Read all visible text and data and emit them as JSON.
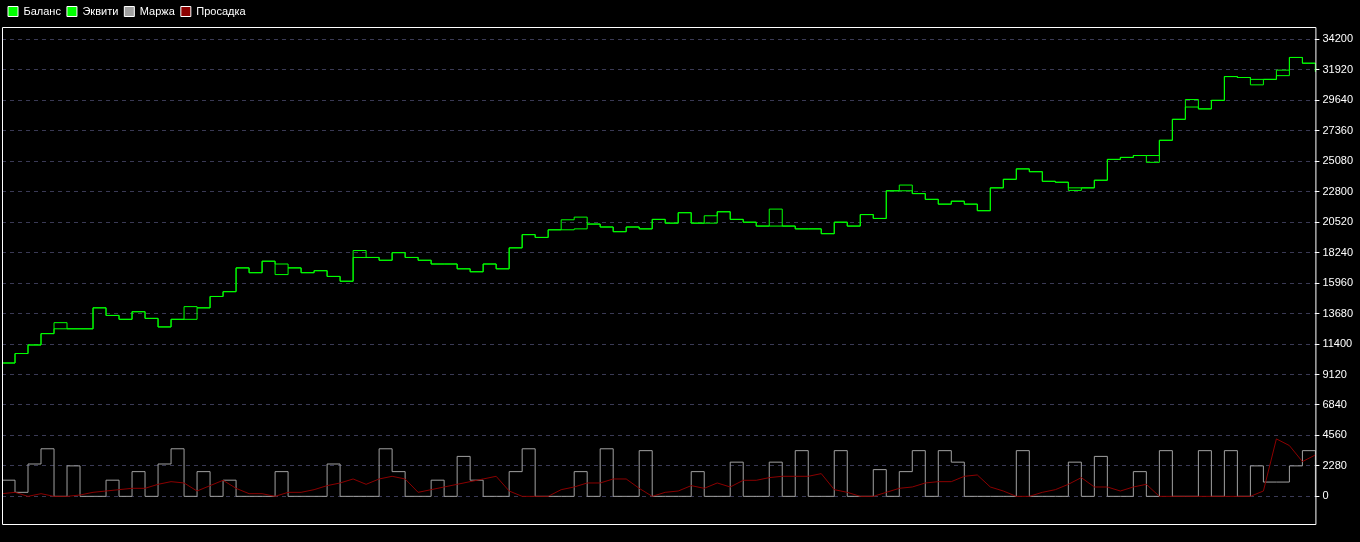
{
  "chart_data": {
    "type": "step",
    "categories": [
      null,
      null,
      null,
      null,
      null,
      null,
      null,
      null,
      null,
      null,
      null,
      null,
      null,
      null,
      null,
      null,
      null,
      null,
      null,
      null,
      null,
      null,
      null,
      null,
      null,
      null,
      null,
      null,
      null,
      null,
      null,
      null,
      null,
      null,
      null,
      null,
      null,
      null,
      null,
      null,
      null,
      null,
      null,
      null,
      null,
      null,
      null,
      null,
      null,
      null,
      null,
      null,
      null,
      null,
      null,
      null,
      null,
      null,
      null,
      null,
      null,
      null,
      null,
      null,
      null,
      null,
      null,
      null,
      null,
      null,
      null,
      null,
      null,
      null,
      null,
      null,
      null,
      null,
      null,
      null,
      null,
      null,
      null,
      null,
      null,
      null,
      null,
      null,
      null,
      null,
      null,
      null,
      null,
      null,
      null,
      null,
      null,
      null,
      null,
      null,
      null,
      null
    ],
    "series": [
      {
        "name": "Баланс",
        "color": "#00ff00",
        "values": [
          9980,
          10690,
          11330,
          12180,
          12540,
          12540,
          12540,
          14110,
          13540,
          13250,
          13820,
          13320,
          12680,
          13250,
          13250,
          14110,
          14960,
          15320,
          17100,
          16740,
          17600,
          17390,
          17100,
          16740,
          16890,
          16460,
          16100,
          17880,
          17880,
          17670,
          18240,
          17880,
          17670,
          17390,
          17390,
          17030,
          16810,
          17390,
          17030,
          18600,
          19590,
          19380,
          19950,
          19950,
          20020,
          20380,
          20160,
          19810,
          20160,
          20020,
          20730,
          20450,
          21230,
          20450,
          20450,
          21300,
          20730,
          20520,
          20230,
          20230,
          20230,
          20020,
          20020,
          19660,
          20520,
          20230,
          21090,
          20800,
          22870,
          22870,
          22660,
          22230,
          21870,
          22090,
          21870,
          21380,
          23090,
          23730,
          24510,
          24300,
          23580,
          23510,
          23090,
          23090,
          23660,
          25220,
          25370,
          25510,
          25510,
          26650,
          28220,
          29140,
          29000,
          29640,
          31420,
          31350,
          31210,
          31210,
          31490,
          32850,
          32420,
          31780
        ]
      },
      {
        "name": "Эквити",
        "color": "#00ff00",
        "values": [
          9980,
          10690,
          11330,
          12180,
          13000,
          12540,
          12540,
          14110,
          13540,
          13250,
          13820,
          13320,
          12680,
          13250,
          14200,
          14110,
          14960,
          15320,
          17100,
          16740,
          17600,
          16600,
          17100,
          16740,
          16890,
          16460,
          16100,
          18400,
          17880,
          17670,
          18240,
          17880,
          17670,
          17390,
          17390,
          17030,
          16810,
          17390,
          17030,
          18600,
          19590,
          19380,
          19950,
          20700,
          20900,
          20380,
          20160,
          19810,
          20160,
          20020,
          20730,
          20450,
          21230,
          20450,
          21000,
          21300,
          20730,
          20520,
          20230,
          21500,
          20230,
          20020,
          20020,
          19660,
          20520,
          20230,
          21090,
          20800,
          22870,
          23300,
          22660,
          22230,
          21870,
          22090,
          21870,
          21380,
          23090,
          23730,
          24510,
          24300,
          23580,
          23510,
          22900,
          23090,
          23660,
          25220,
          25370,
          25510,
          25000,
          26650,
          28220,
          29700,
          29000,
          29640,
          31420,
          31350,
          30800,
          31210,
          31900,
          32850,
          32420,
          31780
        ]
      },
      {
        "name": "Маржа",
        "color": "#a0a0a0",
        "type": "step",
        "values": [
          1210,
          300,
          2420,
          3560,
          0,
          2280,
          0,
          0,
          1210,
          0,
          1850,
          0,
          2420,
          3560,
          0,
          1850,
          0,
          1210,
          0,
          0,
          0,
          1850,
          0,
          0,
          0,
          2420,
          0,
          0,
          0,
          3560,
          1850,
          0,
          0,
          1210,
          0,
          2990,
          1210,
          0,
          0,
          1850,
          3560,
          0,
          0,
          0,
          1850,
          0,
          3560,
          0,
          0,
          3420,
          0,
          0,
          0,
          1850,
          0,
          0,
          2560,
          0,
          0,
          2560,
          0,
          3420,
          0,
          0,
          3420,
          0,
          0,
          2000,
          0,
          1850,
          3420,
          0,
          3420,
          2560,
          0,
          0,
          0,
          0,
          3420,
          0,
          0,
          0,
          2560,
          0,
          2990,
          0,
          0,
          1850,
          0,
          3420,
          0,
          0,
          3420,
          0,
          3420,
          0,
          2280,
          1070,
          1070,
          2280,
          3420,
          0
        ]
      },
      {
        "name": "Просадка",
        "color": "#8b0000",
        "type": "line",
        "values": [
          200,
          300,
          0,
          200,
          0,
          0,
          100,
          300,
          400,
          500,
          600,
          600,
          900,
          1100,
          1000,
          400,
          800,
          1200,
          600,
          200,
          200,
          0,
          300,
          300,
          500,
          800,
          1000,
          1300,
          900,
          1300,
          1500,
          1300,
          300,
          500,
          700,
          900,
          1100,
          1300,
          1500,
          400,
          0,
          0,
          0,
          500,
          700,
          1000,
          1000,
          1300,
          1300,
          600,
          0,
          300,
          400,
          800,
          600,
          1000,
          700,
          1200,
          1200,
          1400,
          1500,
          1500,
          1500,
          1700,
          500,
          300,
          0,
          0,
          300,
          600,
          700,
          1000,
          1100,
          1100,
          1500,
          1600,
          700,
          400,
          0,
          0,
          300,
          500,
          900,
          1400,
          700,
          700,
          400,
          700,
          900,
          0,
          0,
          0,
          0,
          0,
          0,
          0,
          0,
          400,
          4300,
          3800,
          2600,
          3100
        ]
      }
    ],
    "ylim": [
      -2070,
      35130
    ],
    "yticks": [
      0,
      2280,
      4560,
      6840,
      9120,
      11400,
      13680,
      15960,
      18240,
      20520,
      22800,
      25080,
      27360,
      29640,
      31920,
      34200
    ],
    "grid": "y",
    "legend": "top left",
    "tick_labels": "y",
    "line_style": "solid",
    "marker": "none"
  }
}
